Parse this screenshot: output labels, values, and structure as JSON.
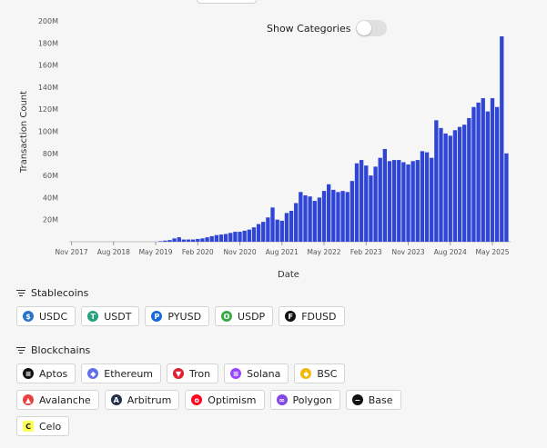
{
  "toggle": {
    "label": "Show Categories",
    "on": false
  },
  "chart_data": {
    "type": "bar",
    "xlabel": "Date",
    "ylabel": "Transaction Count",
    "ylim": [
      0,
      200
    ],
    "yticks": [
      20,
      40,
      60,
      80,
      100,
      120,
      140,
      160,
      180,
      200
    ],
    "ytick_labels": [
      "20M",
      "40M",
      "60M",
      "80M",
      "100M",
      "120M",
      "140M",
      "160M",
      "180M",
      "200M"
    ],
    "xticks": [
      {
        "label": "Nov 2017",
        "index": 0
      },
      {
        "label": "Aug 2018",
        "index": 9
      },
      {
        "label": "May 2019",
        "index": 18
      },
      {
        "label": "Feb 2020",
        "index": 27
      },
      {
        "label": "Nov 2020",
        "index": 36
      },
      {
        "label": "Aug 2021",
        "index": 45
      },
      {
        "label": "May 2022",
        "index": 54
      },
      {
        "label": "Feb 2023",
        "index": 63
      },
      {
        "label": "Nov 2023",
        "index": 72
      },
      {
        "label": "Aug 2024",
        "index": 81
      },
      {
        "label": "May 2025",
        "index": 90
      }
    ],
    "series": [
      {
        "color": "#2f45d6",
        "categories_start": "Nov 2017",
        "values": [
          0,
          0,
          0,
          0,
          0,
          0,
          0,
          0,
          0,
          0,
          0,
          0,
          0,
          0,
          0,
          0,
          0,
          0,
          0,
          0.5,
          1,
          1.5,
          3,
          4,
          2,
          2,
          2,
          2.5,
          3,
          4,
          5,
          6,
          6.5,
          7,
          8,
          9,
          9,
          10,
          11,
          13,
          16,
          18,
          22,
          31,
          20,
          19,
          26,
          28,
          35,
          45,
          42,
          41,
          37,
          40,
          46,
          52,
          47,
          45,
          46,
          45,
          55,
          71,
          74,
          69,
          60,
          68,
          76,
          84,
          73,
          74,
          74,
          72,
          70,
          73,
          74,
          82,
          81,
          76,
          110,
          103,
          98,
          96,
          101,
          104,
          106,
          112,
          122,
          126,
          130,
          118,
          130,
          122,
          186,
          80
        ]
      }
    ]
  },
  "stablecoins": {
    "title": "Stablecoins",
    "items": [
      {
        "label": "USDC",
        "color": "#2775ca",
        "glyph": "$"
      },
      {
        "label": "USDT",
        "color": "#26a17b",
        "glyph": "T"
      },
      {
        "label": "PYUSD",
        "color": "#1a6bd9",
        "glyph": "P"
      },
      {
        "label": "USDP",
        "color": "#3aa845",
        "glyph": "O"
      },
      {
        "label": "FDUSD",
        "color": "#111111",
        "glyph": "F"
      }
    ]
  },
  "blockchains": {
    "title": "Blockchains",
    "rows": [
      [
        {
          "label": "Aptos",
          "color": "#111111",
          "glyph": "≡"
        },
        {
          "label": "Ethereum",
          "color": "#6270e8",
          "glyph": "◆"
        },
        {
          "label": "Tron",
          "color": "#e0202e",
          "glyph": "▼"
        },
        {
          "label": "Solana",
          "color": "#9945ff",
          "glyph": "≡"
        },
        {
          "label": "BSC",
          "color": "#f0b90b",
          "glyph": "◆"
        }
      ],
      [
        {
          "label": "Avalanche",
          "color": "#e84142",
          "glyph": "▲"
        },
        {
          "label": "Arbitrum",
          "color": "#213147",
          "glyph": "A"
        },
        {
          "label": "Optimism",
          "color": "#ff0420",
          "glyph": "o"
        },
        {
          "label": "Polygon",
          "color": "#8247e5",
          "glyph": "∞"
        },
        {
          "label": "Base",
          "color": "#111111",
          "glyph": "−"
        }
      ],
      [
        {
          "label": "Celo",
          "color": "#fcff52",
          "glyph": "C"
        }
      ]
    ]
  }
}
